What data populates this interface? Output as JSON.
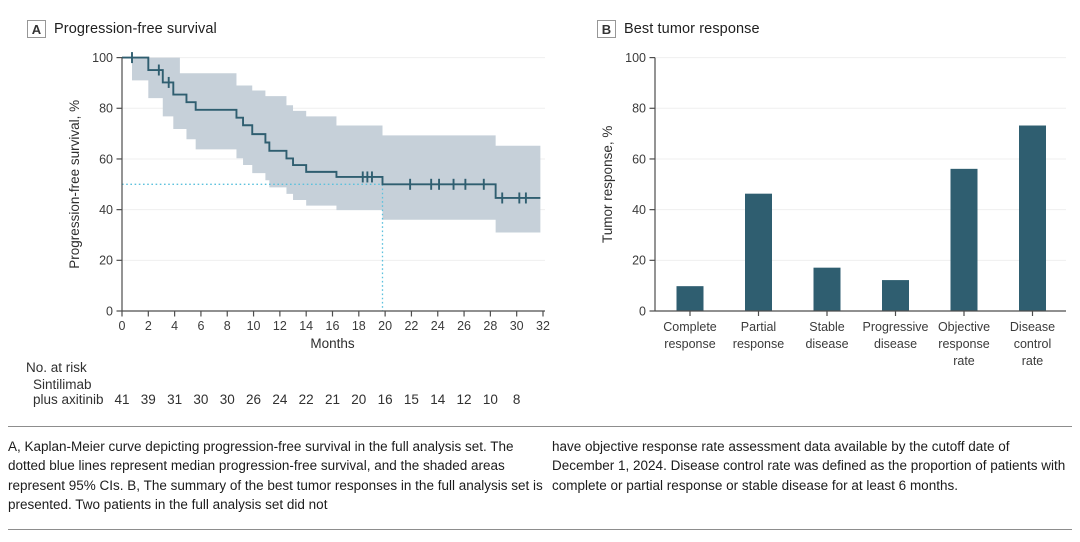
{
  "figure": {
    "panels": [
      {
        "label": "A",
        "title": "Progression-free survival"
      },
      {
        "label": "B",
        "title": "Best tumor response"
      }
    ],
    "caption_left": "A, Kaplan-Meier curve depicting progression-free survival in the full analysis set. The dotted blue lines represent median progression-free survival, and the shaded areas represent 95% CIs. B, The summary of the best tumor responses in the full analysis set is presented. Two patients in the full analysis set did not",
    "caption_right": "have objective response rate assessment data available by the cutoff date of December 1, 2024. Disease control rate was defined as the proportion of patients with complete or partial response or stable disease for at least 6 months."
  },
  "colors": {
    "series": "#2f5e70",
    "ci_band": "#c6d0d9",
    "median_line": "#5cc1dd",
    "axis": "#4d4d4d",
    "gridline": "#efefef",
    "text": "#333333"
  },
  "chart_data": [
    {
      "type": "line",
      "subtype": "kaplan-meier",
      "panel": "A",
      "title": "Progression-free survival",
      "xlabel": "Months",
      "ylabel": "Progression-free survival, %",
      "xlim": [
        0,
        32
      ],
      "ylim": [
        0,
        100
      ],
      "xticks": [
        0,
        2,
        4,
        6,
        8,
        10,
        12,
        14,
        16,
        18,
        20,
        22,
        24,
        26,
        28,
        30,
        32
      ],
      "yticks": [
        0,
        20,
        40,
        60,
        80,
        100
      ],
      "grid": "horizontal",
      "legend_position": "none",
      "median_months": 19.8,
      "median_percent": 50,
      "series": [
        {
          "name": "Sintilimab plus axitinib",
          "steps": [
            [
              0,
              100
            ],
            [
              2,
              95.1
            ],
            [
              3.1,
              90.2
            ],
            [
              3.9,
              85.4
            ],
            [
              4.9,
              82.4
            ],
            [
              5.6,
              79.4
            ],
            [
              8.7,
              76.3
            ],
            [
              9.2,
              73.3
            ],
            [
              9.9,
              69.8
            ],
            [
              10.9,
              66.5
            ],
            [
              11.2,
              63.2
            ],
            [
              12.5,
              60.2
            ],
            [
              13,
              57.6
            ],
            [
              14,
              54.9
            ],
            [
              16.3,
              52.9
            ],
            [
              19.8,
              50
            ],
            [
              28.4,
              44.6
            ]
          ],
          "end_x": 31.8,
          "censors": [
            [
              0.76,
              100
            ],
            [
              2.8,
              95.1
            ],
            [
              3.55,
              90.2
            ],
            [
              18.3,
              52.9
            ],
            [
              18.65,
              52.9
            ],
            [
              19.0,
              52.9
            ],
            [
              21.9,
              50
            ],
            [
              23.5,
              50
            ],
            [
              24.1,
              50
            ],
            [
              25.2,
              50
            ],
            [
              26.1,
              50
            ],
            [
              27.5,
              50
            ],
            [
              28.9,
              44.6
            ],
            [
              30.2,
              44.6
            ],
            [
              30.7,
              44.6
            ]
          ],
          "ci_upper": [
            [
              0,
              100
            ],
            [
              4.4,
              93.8
            ],
            [
              8.7,
              89
            ],
            [
              9.9,
              87
            ],
            [
              10.9,
              84.8
            ],
            [
              12.5,
              81.2
            ],
            [
              13,
              79
            ],
            [
              14,
              76.8
            ],
            [
              16.3,
              73.2
            ],
            [
              19.8,
              69.3
            ],
            [
              28.4,
              65.2
            ]
          ],
          "ci_lower": [
            [
              0,
              100
            ],
            [
              0.76,
              91
            ],
            [
              2,
              84
            ],
            [
              3.1,
              76.8
            ],
            [
              3.9,
              71.8
            ],
            [
              4.9,
              67.8
            ],
            [
              5.6,
              63.8
            ],
            [
              8.7,
              60.3
            ],
            [
              9.2,
              57.6
            ],
            [
              9.9,
              54.4
            ],
            [
              10.9,
              51.6
            ],
            [
              11.2,
              48.8
            ],
            [
              12.5,
              46.2
            ],
            [
              13,
              43.8
            ],
            [
              14,
              41.6
            ],
            [
              16.3,
              39.8
            ],
            [
              19.8,
              36
            ],
            [
              28.4,
              31
            ]
          ]
        }
      ],
      "no_at_risk": {
        "header": "No. at risk",
        "group_lines": [
          "Sintilimab",
          "plus axitinib"
        ],
        "times": [
          0,
          2,
          4,
          6,
          8,
          10,
          12,
          14,
          16,
          18,
          20,
          22,
          24,
          26,
          28,
          30
        ],
        "counts": [
          41,
          39,
          31,
          30,
          30,
          26,
          24,
          22,
          21,
          20,
          16,
          15,
          14,
          12,
          10,
          8
        ]
      }
    },
    {
      "type": "bar",
      "panel": "B",
      "title": "Best tumor response",
      "xlabel": "",
      "ylabel": "Tumor response, %",
      "ylim": [
        0,
        100
      ],
      "yticks": [
        0,
        20,
        40,
        60,
        80,
        100
      ],
      "grid": "horizontal",
      "categories": [
        "Complete response",
        "Partial response",
        "Stable disease",
        "Progressive disease",
        "Objective response rate",
        "Disease control rate"
      ],
      "category_label_lines": [
        [
          "Complete",
          "response"
        ],
        [
          "Partial",
          "response"
        ],
        [
          "Stable",
          "disease"
        ],
        [
          "Progressive",
          "disease"
        ],
        [
          "Objective",
          "response",
          "rate"
        ],
        [
          "Disease",
          "control",
          "rate"
        ]
      ],
      "values": [
        9.8,
        46.3,
        17.1,
        12.2,
        56.1,
        73.2
      ]
    }
  ]
}
